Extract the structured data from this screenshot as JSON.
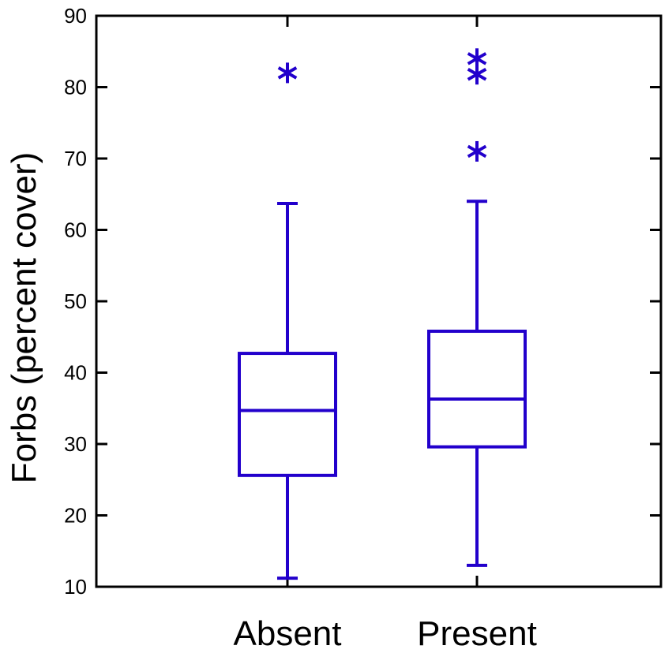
{
  "chart_data": {
    "type": "box",
    "ylabel": "Forbs (percent cover)",
    "xlabel": "",
    "ylim": [
      10,
      90
    ],
    "yticks": [
      10,
      20,
      30,
      40,
      50,
      60,
      70,
      80,
      90
    ],
    "categories": [
      "Absent",
      "Present"
    ],
    "boxes": [
      {
        "category": "Absent",
        "whisker_low": 11.2,
        "q1": 25.6,
        "median": 34.7,
        "q3": 42.7,
        "whisker_high": 63.7,
        "outliers": [
          82
        ]
      },
      {
        "category": "Present",
        "whisker_low": 13.0,
        "q1": 29.6,
        "median": 36.3,
        "q3": 45.8,
        "whisker_high": 64.0,
        "outliers": [
          71,
          81.8,
          84
        ]
      }
    ],
    "grid": false,
    "color": "#2200cc"
  }
}
